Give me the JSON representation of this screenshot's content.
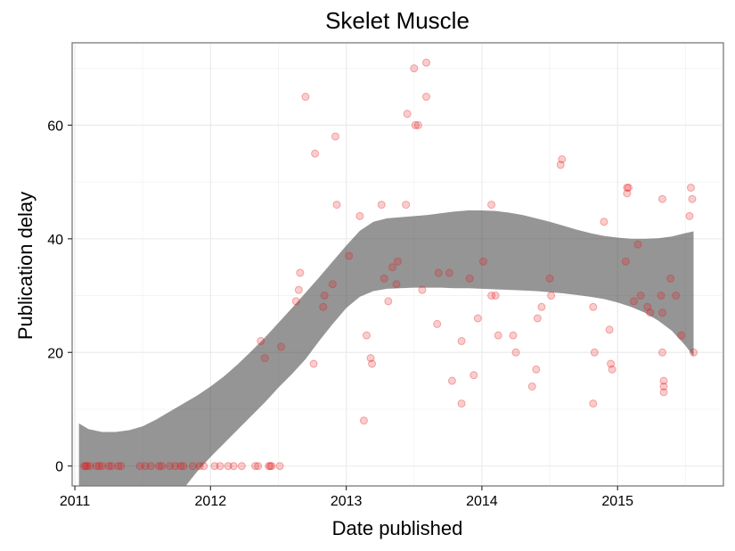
{
  "chart_data": {
    "type": "scatter",
    "title": "Skelet Muscle",
    "xlabel": "Date published",
    "ylabel": "Publication delay",
    "xlim": [
      2010.98,
      2015.78
    ],
    "ylim": [
      -3.5,
      74.5
    ],
    "x_ticks": [
      2011,
      2012,
      2013,
      2014,
      2015
    ],
    "x_tick_labels": [
      "2011",
      "2012",
      "2013",
      "2014",
      "2015"
    ],
    "y_ticks": [
      0,
      20,
      40,
      60
    ],
    "y_tick_labels": [
      "0",
      "20",
      "40",
      "60"
    ],
    "grid": true,
    "legend": "none",
    "point_color": "#e41a1c",
    "smooth_color": "#333333",
    "points": [
      [
        2011.07,
        0
      ],
      [
        2011.08,
        0
      ],
      [
        2011.09,
        0
      ],
      [
        2011.11,
        0
      ],
      [
        2011.16,
        0
      ],
      [
        2011.18,
        0
      ],
      [
        2011.2,
        0
      ],
      [
        2011.25,
        0
      ],
      [
        2011.27,
        0
      ],
      [
        2011.32,
        0
      ],
      [
        2011.34,
        0
      ],
      [
        2011.48,
        0
      ],
      [
        2011.52,
        0
      ],
      [
        2011.56,
        0
      ],
      [
        2011.62,
        0
      ],
      [
        2011.64,
        0
      ],
      [
        2011.7,
        0
      ],
      [
        2011.74,
        0
      ],
      [
        2011.78,
        0
      ],
      [
        2011.8,
        0
      ],
      [
        2011.87,
        0
      ],
      [
        2011.92,
        0
      ],
      [
        2011.95,
        0
      ],
      [
        2012.03,
        0
      ],
      [
        2012.07,
        0
      ],
      [
        2012.13,
        0
      ],
      [
        2012.17,
        0
      ],
      [
        2012.23,
        0
      ],
      [
        2012.33,
        0
      ],
      [
        2012.35,
        0
      ],
      [
        2012.43,
        0
      ],
      [
        2012.44,
        0
      ],
      [
        2012.45,
        0
      ],
      [
        2012.51,
        0
      ],
      [
        2012.37,
        22
      ],
      [
        2012.4,
        19
      ],
      [
        2012.52,
        21
      ],
      [
        2012.63,
        29
      ],
      [
        2012.65,
        31
      ],
      [
        2012.66,
        34
      ],
      [
        2012.7,
        65
      ],
      [
        2012.76,
        18
      ],
      [
        2012.77,
        55
      ],
      [
        2012.83,
        28
      ],
      [
        2012.84,
        30
      ],
      [
        2012.9,
        32
      ],
      [
        2012.92,
        58
      ],
      [
        2012.93,
        46
      ],
      [
        2013.02,
        37
      ],
      [
        2013.1,
        44
      ],
      [
        2013.13,
        8
      ],
      [
        2013.15,
        23
      ],
      [
        2013.18,
        19
      ],
      [
        2013.19,
        18
      ],
      [
        2013.26,
        46
      ],
      [
        2013.28,
        33
      ],
      [
        2013.31,
        29
      ],
      [
        2013.34,
        35
      ],
      [
        2013.37,
        32
      ],
      [
        2013.38,
        36
      ],
      [
        2013.44,
        46
      ],
      [
        2013.45,
        62
      ],
      [
        2013.5,
        70
      ],
      [
        2013.51,
        60
      ],
      [
        2013.53,
        60
      ],
      [
        2013.56,
        31
      ],
      [
        2013.59,
        71
      ],
      [
        2013.59,
        65
      ],
      [
        2013.67,
        25
      ],
      [
        2013.68,
        34
      ],
      [
        2013.76,
        34
      ],
      [
        2013.78,
        15
      ],
      [
        2013.85,
        22
      ],
      [
        2013.85,
        11
      ],
      [
        2013.91,
        33
      ],
      [
        2013.94,
        16
      ],
      [
        2013.97,
        26
      ],
      [
        2014.01,
        36
      ],
      [
        2014.07,
        30
      ],
      [
        2014.07,
        46
      ],
      [
        2014.1,
        30
      ],
      [
        2014.12,
        23
      ],
      [
        2014.23,
        23
      ],
      [
        2014.25,
        20
      ],
      [
        2014.37,
        14
      ],
      [
        2014.4,
        17
      ],
      [
        2014.41,
        26
      ],
      [
        2014.44,
        28
      ],
      [
        2014.5,
        33
      ],
      [
        2014.51,
        30
      ],
      [
        2014.58,
        53
      ],
      [
        2014.59,
        54
      ],
      [
        2014.82,
        11
      ],
      [
        2014.82,
        28
      ],
      [
        2014.83,
        20
      ],
      [
        2014.9,
        43
      ],
      [
        2014.94,
        24
      ],
      [
        2014.95,
        18
      ],
      [
        2014.96,
        17
      ],
      [
        2015.06,
        36
      ],
      [
        2015.07,
        48
      ],
      [
        2015.07,
        49
      ],
      [
        2015.08,
        49
      ],
      [
        2015.12,
        29
      ],
      [
        2015.15,
        39
      ],
      [
        2015.17,
        30
      ],
      [
        2015.22,
        28
      ],
      [
        2015.24,
        27
      ],
      [
        2015.32,
        30
      ],
      [
        2015.33,
        27
      ],
      [
        2015.33,
        47
      ],
      [
        2015.33,
        20
      ],
      [
        2015.34,
        14
      ],
      [
        2015.34,
        15
      ],
      [
        2015.34,
        13
      ],
      [
        2015.39,
        33
      ],
      [
        2015.43,
        30
      ],
      [
        2015.47,
        23
      ],
      [
        2015.53,
        44
      ],
      [
        2015.54,
        49
      ],
      [
        2015.55,
        47
      ],
      [
        2015.56,
        20
      ]
    ],
    "smooth_band": {
      "x": [
        2011.03,
        2011.1,
        2011.2,
        2011.3,
        2011.4,
        2011.5,
        2011.6,
        2011.7,
        2011.8,
        2011.9,
        2012.0,
        2012.1,
        2012.2,
        2012.3,
        2012.4,
        2012.5,
        2012.6,
        2012.7,
        2012.8,
        2012.9,
        2013.0,
        2013.1,
        2013.2,
        2013.3,
        2013.4,
        2013.5,
        2013.6,
        2013.7,
        2013.8,
        2013.9,
        2014.0,
        2014.1,
        2014.2,
        2014.3,
        2014.4,
        2014.5,
        2014.6,
        2014.7,
        2014.8,
        2014.9,
        2015.0,
        2015.1,
        2015.2,
        2015.3,
        2015.4,
        2015.5,
        2015.56
      ],
      "upper": [
        7.5,
        6.5,
        6.0,
        6.0,
        6.3,
        7.0,
        8.2,
        9.6,
        11.0,
        12.4,
        14.0,
        15.8,
        17.9,
        20.2,
        22.6,
        25.2,
        27.8,
        30.5,
        33.2,
        36.0,
        38.8,
        41.4,
        43.0,
        43.6,
        43.8,
        44.0,
        44.2,
        44.5,
        44.8,
        45.0,
        45.0,
        44.9,
        44.6,
        44.2,
        43.6,
        43.0,
        42.3,
        41.6,
        41.0,
        40.5,
        40.2,
        40.0,
        40.0,
        40.1,
        40.4,
        41.0,
        41.3
      ],
      "lower": [
        -6.0,
        -7.6,
        -9.0,
        -9.8,
        -10.0,
        -9.6,
        -8.6,
        -6.8,
        -4.0,
        -1.0,
        1.6,
        4.0,
        6.4,
        8.8,
        11.2,
        13.8,
        16.2,
        18.8,
        22.0,
        25.0,
        27.8,
        29.8,
        30.8,
        31.2,
        31.3,
        31.4,
        31.4,
        31.4,
        31.3,
        31.3,
        31.2,
        31.1,
        31.0,
        30.9,
        30.8,
        30.6,
        30.4,
        30.1,
        29.8,
        29.4,
        28.8,
        28.0,
        27.0,
        25.6,
        23.8,
        21.2,
        19.3
      ]
    }
  }
}
